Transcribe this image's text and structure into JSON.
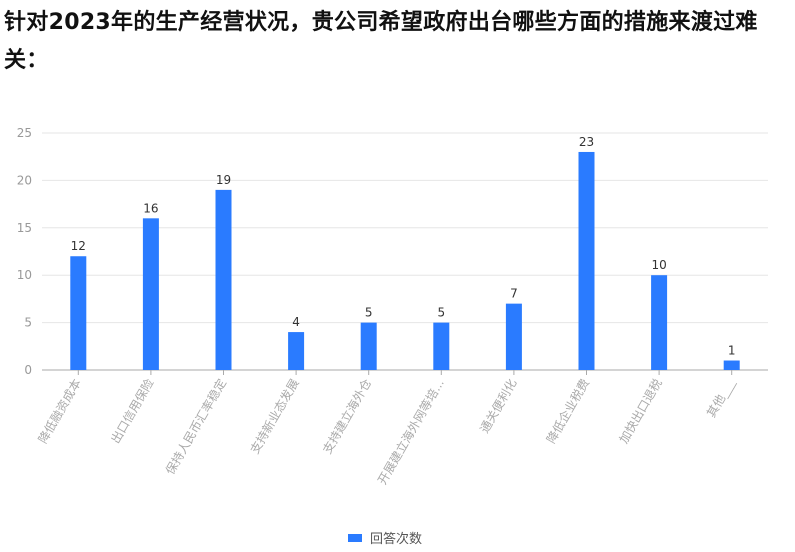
{
  "title": "针对2023年的生产经营状况，贵公司希望政府出台哪些方面的措施来渡过难关：",
  "chart_data": {
    "type": "bar",
    "title": "针对2023年的生产经营状况，贵公司希望政府出台哪些方面的措施来渡过难关：",
    "categories": [
      "降低融资成本",
      "出口信用保险",
      "保持人民币汇率稳定",
      "支持新业态发展",
      "支持建立海外仓",
      "开展建立海外网等培...",
      "通关便利化",
      "降低企业税费",
      "加快出口退税",
      "其他___"
    ],
    "series": [
      {
        "name": "回答次数",
        "values": [
          12,
          16,
          19,
          4,
          5,
          5,
          7,
          23,
          10,
          1
        ],
        "color": "#2a7bff"
      }
    ],
    "ylim": [
      0,
      25
    ],
    "yticks": [
      0,
      5,
      10,
      15,
      20,
      25
    ],
    "grid": true,
    "legend": "bottom-center",
    "xlabel": "",
    "ylabel": ""
  }
}
